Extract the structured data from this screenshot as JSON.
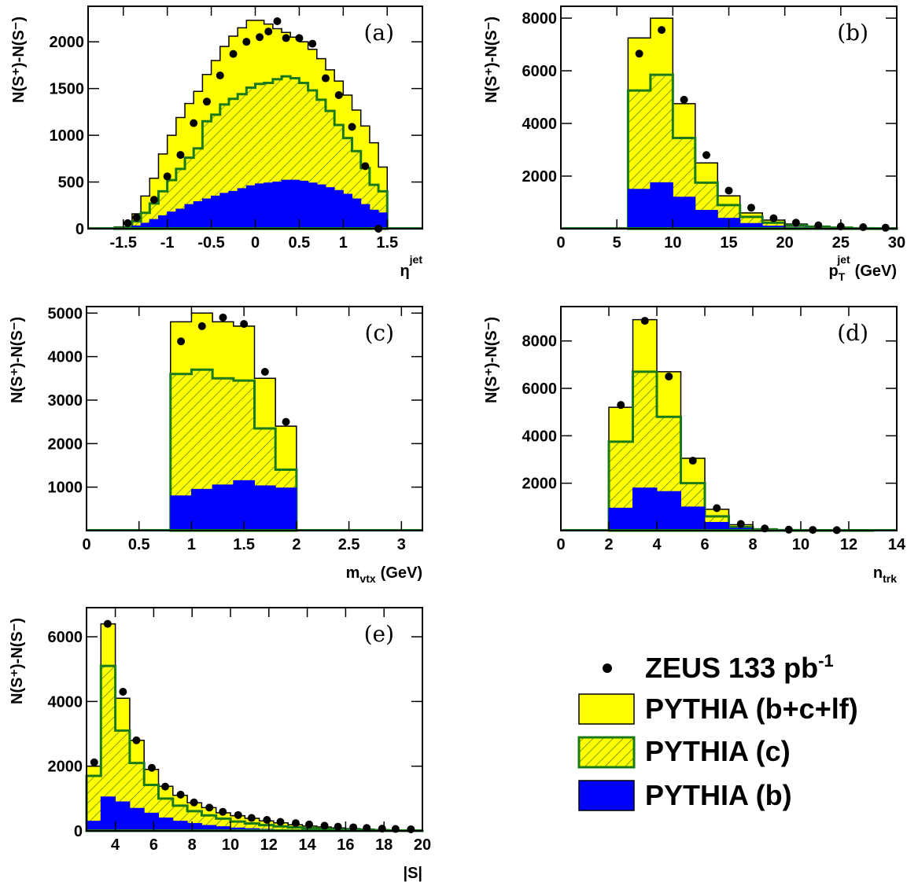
{
  "colors": {
    "total": "#ffff00",
    "charm_fill": "#ffff00",
    "charm_line": "#1a7a1a",
    "beauty": "#0000ff",
    "data": "#000000",
    "hatch": "#3f6b10"
  },
  "legend": {
    "data_label": "ZEUS 133 pb",
    "data_label_sup": "-1",
    "total_label": "PYTHIA (b+c+lf)",
    "charm_label": "PYTHIA (c)",
    "beauty_label": "PYTHIA (b)"
  },
  "chart_data": [
    {
      "type": "histogram",
      "panel": "(a)",
      "ylabel": "N(S⁺)-N(S⁻)",
      "xlabel": "η",
      "xlabel_sup": "jet",
      "xlim": [
        -1.9,
        1.9
      ],
      "ylim": [
        0,
        2380
      ],
      "xticks": [
        -1.5,
        -1,
        -0.5,
        0,
        0.5,
        1,
        1.5
      ],
      "xtick_labels": [
        "-1.5",
        "-1",
        "-0.5",
        "0",
        "0.5",
        "1",
        "1.5"
      ],
      "yticks": [
        0,
        500,
        1000,
        1500,
        2000
      ],
      "ytick_labels": [
        "0",
        "500",
        "1000",
        "1500",
        "2000"
      ],
      "bin_edges": [
        -1.6,
        -1.4,
        -1.3,
        -1.2,
        -1.1,
        -1.0,
        -0.9,
        -0.8,
        -0.7,
        -0.6,
        -0.5,
        -0.4,
        -0.3,
        -0.2,
        -0.1,
        0.0,
        0.1,
        0.2,
        0.3,
        0.4,
        0.5,
        0.6,
        0.7,
        0.8,
        0.9,
        1.0,
        1.1,
        1.2,
        1.3,
        1.4,
        1.5
      ],
      "total": [
        20,
        160,
        350,
        540,
        800,
        1000,
        1190,
        1340,
        1470,
        1650,
        1800,
        1950,
        2060,
        2150,
        2230,
        2230,
        2190,
        2140,
        2100,
        2050,
        2000,
        1920,
        1820,
        1700,
        1580,
        1430,
        1270,
        1100,
        920,
        660
      ],
      "charm": [
        10,
        80,
        170,
        270,
        400,
        520,
        640,
        760,
        860,
        1150,
        1220,
        1330,
        1390,
        1440,
        1510,
        1550,
        1560,
        1600,
        1630,
        1610,
        1560,
        1480,
        1380,
        1260,
        1110,
        970,
        830,
        650,
        470,
        400
      ],
      "beauty": [
        0,
        30,
        60,
        100,
        140,
        180,
        210,
        260,
        290,
        320,
        350,
        380,
        400,
        430,
        460,
        480,
        490,
        500,
        520,
        520,
        510,
        490,
        470,
        440,
        410,
        370,
        320,
        260,
        200,
        170
      ],
      "data_x": [
        -1.45,
        -1.35,
        -1.15,
        -1.0,
        -0.85,
        -0.7,
        -0.55,
        -0.4,
        -0.25,
        -0.1,
        0.05,
        0.15,
        0.25,
        0.35,
        0.5,
        0.65,
        0.8,
        0.95,
        1.1,
        1.25,
        1.4
      ],
      "data_y": [
        60,
        120,
        310,
        560,
        790,
        1130,
        1360,
        1640,
        1870,
        2000,
        2050,
        2110,
        2220,
        2040,
        2040,
        1980,
        1610,
        1430,
        1090,
        670,
        0
      ]
    },
    {
      "type": "histogram",
      "panel": "(b)",
      "ylabel": "N(S⁺)-N(S⁻)",
      "xlabel": "p",
      "xlabel_sub": "T",
      "xlabel_sup": "jet",
      "xlabel_unit": "(GeV)",
      "xlim": [
        0,
        30
      ],
      "ylim": [
        0,
        8450
      ],
      "xticks": [
        0,
        5,
        10,
        15,
        20,
        25,
        30
      ],
      "xtick_labels": [
        "0",
        "5",
        "10",
        "15",
        "20",
        "25",
        "30"
      ],
      "yticks": [
        2000,
        4000,
        6000,
        8000
      ],
      "ytick_labels": [
        "2000",
        "4000",
        "6000",
        "8000"
      ],
      "bin_edges": [
        6,
        8,
        10,
        12,
        14,
        16,
        18,
        20,
        22,
        24,
        26,
        28,
        30
      ],
      "total": [
        7250,
        8000,
        4750,
        2500,
        1250,
        600,
        330,
        180,
        100,
        60,
        30,
        20
      ],
      "charm": [
        5250,
        5850,
        3450,
        1750,
        900,
        450,
        230,
        130,
        70,
        40,
        20,
        10
      ],
      "beauty": [
        1500,
        1750,
        1200,
        700,
        400,
        200,
        100,
        60,
        30,
        20,
        10,
        5
      ],
      "data_x": [
        7,
        9,
        11,
        13,
        15,
        17,
        19,
        21,
        23,
        25,
        27,
        29
      ],
      "data_y": [
        6650,
        7550,
        4900,
        2800,
        1450,
        800,
        400,
        230,
        130,
        90,
        60,
        40
      ]
    },
    {
      "type": "histogram",
      "panel": "(c)",
      "ylabel": "N(S⁺)-N(S⁻)",
      "xlabel": "m",
      "xlabel_sub": "vtx",
      "xlabel_unit": "(GeV)",
      "xlim": [
        0,
        3.2
      ],
      "ylim": [
        0,
        5150
      ],
      "xticks": [
        0,
        0.5,
        1,
        1.5,
        2,
        2.5,
        3
      ],
      "xtick_labels": [
        "0",
        "0.5",
        "1",
        "1.5",
        "2",
        "2.5",
        "3"
      ],
      "yticks": [
        1000,
        2000,
        3000,
        4000,
        5000
      ],
      "ytick_labels": [
        "1000",
        "2000",
        "3000",
        "4000",
        "5000"
      ],
      "bin_edges": [
        0.8,
        1.0,
        1.2,
        1.4,
        1.6,
        1.8,
        2.0
      ],
      "total": [
        4800,
        5000,
        4800,
        4700,
        3500,
        2400
      ],
      "charm": [
        3600,
        3700,
        3500,
        3450,
        2350,
        1400
      ],
      "beauty": [
        800,
        950,
        1050,
        1150,
        1030,
        980
      ],
      "data_x": [
        0.9,
        1.1,
        1.3,
        1.5,
        1.7,
        1.9
      ],
      "data_y": [
        4350,
        4700,
        4900,
        4750,
        3650,
        2500
      ]
    },
    {
      "type": "histogram",
      "panel": "(d)",
      "ylabel": "N(S⁺)-N(S⁻)",
      "xlabel": "n",
      "xlabel_sub": "trk",
      "xlim": [
        0,
        14
      ],
      "ylim": [
        0,
        9450
      ],
      "xticks": [
        0,
        2,
        4,
        6,
        8,
        10,
        12,
        14
      ],
      "xtick_labels": [
        "0",
        "2",
        "4",
        "6",
        "8",
        "10",
        "12",
        "14"
      ],
      "yticks": [
        2000,
        4000,
        6000,
        8000
      ],
      "ytick_labels": [
        "2000",
        "4000",
        "6000",
        "8000"
      ],
      "bin_edges": [
        2,
        3,
        4,
        5,
        6,
        7,
        8,
        9,
        10,
        11,
        12,
        13
      ],
      "total": [
        5200,
        8900,
        6700,
        3050,
        900,
        250,
        80,
        30,
        15,
        8,
        5
      ],
      "charm": [
        3750,
        6700,
        4800,
        2000,
        600,
        150,
        50,
        20,
        10,
        5,
        3
      ],
      "beauty": [
        950,
        1800,
        1650,
        1000,
        350,
        100,
        40,
        15,
        8,
        4,
        2
      ],
      "data_x": [
        2.5,
        3.5,
        4.5,
        5.5,
        6.5,
        7.5,
        8.5,
        9.5,
        10.5,
        11.5
      ],
      "data_y": [
        5300,
        8850,
        6500,
        2950,
        950,
        280,
        90,
        40,
        30,
        20
      ]
    },
    {
      "type": "histogram",
      "panel": "(e)",
      "ylabel": "N(S⁺)-N(S⁻)",
      "xlabel": "|S|",
      "xlim": [
        2.5,
        20
      ],
      "ylim": [
        0,
        6900
      ],
      "xticks": [
        4,
        6,
        8,
        10,
        12,
        14,
        16,
        18,
        20
      ],
      "xtick_labels": [
        "4",
        "6",
        "8",
        "10",
        "12",
        "14",
        "16",
        "18",
        "20"
      ],
      "yticks": [
        0,
        2000,
        4000,
        6000
      ],
      "ytick_labels": [
        "0",
        "2000",
        "4000",
        "6000"
      ],
      "bin_edges": [
        2.5,
        3.25,
        4.0,
        4.75,
        5.5,
        6.25,
        7.0,
        7.75,
        8.5,
        9.25,
        10.0,
        10.75,
        11.5,
        12.25,
        13.0,
        13.75,
        14.5,
        15.25,
        16.0,
        16.75,
        17.5,
        18.25,
        19.0,
        19.75,
        20.0
      ],
      "total": [
        2000,
        6400,
        4100,
        2800,
        1900,
        1380,
        1100,
        870,
        720,
        560,
        470,
        390,
        310,
        250,
        190,
        150,
        120,
        90,
        70,
        55,
        40,
        30,
        20,
        10
      ],
      "charm": [
        1700,
        5100,
        3100,
        2100,
        1420,
        1000,
        780,
        610,
        480,
        380,
        290,
        230,
        180,
        140,
        110,
        85,
        60,
        45,
        35,
        25,
        18,
        12,
        8,
        4
      ],
      "beauty": [
        300,
        1050,
        900,
        700,
        550,
        400,
        300,
        230,
        170,
        130,
        90,
        70,
        50,
        40,
        30,
        22,
        16,
        12,
        9,
        6,
        4,
        3,
        2,
        1
      ],
      "data_x": [
        2.9,
        3.6,
        4.4,
        5.1,
        5.9,
        6.6,
        7.4,
        8.1,
        8.9,
        9.6,
        10.4,
        11.1,
        11.9,
        12.6,
        13.4,
        14.1,
        14.9,
        15.6,
        16.4,
        17.1,
        17.9,
        18.6,
        19.4
      ],
      "data_y": [
        2120,
        6400,
        4300,
        2800,
        1950,
        1370,
        1120,
        880,
        720,
        590,
        490,
        400,
        340,
        280,
        240,
        200,
        160,
        130,
        110,
        90,
        70,
        60,
        50
      ]
    }
  ]
}
